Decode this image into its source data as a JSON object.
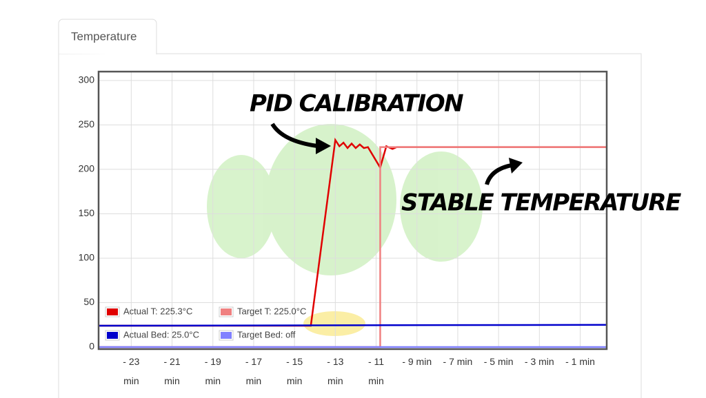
{
  "tab": "Temperature",
  "chart_data": {
    "type": "line",
    "annotations": [
      "PID CALIBRATION",
      "STABLE TEMPERATURE"
    ],
    "xlim": [
      -24.6,
      0.3
    ],
    "ylim": [
      0,
      310
    ],
    "xticks": [
      {
        "value": -23,
        "label": "- 23 min"
      },
      {
        "value": -21,
        "label": "- 21 min"
      },
      {
        "value": -19,
        "label": "- 19 min"
      },
      {
        "value": -17,
        "label": "- 17 min"
      },
      {
        "value": -15,
        "label": "- 15 min"
      },
      {
        "value": -13,
        "label": "- 13 min"
      },
      {
        "value": -11,
        "label": "- 11 min"
      },
      {
        "value": -9,
        "label": "- 9 min"
      },
      {
        "value": -7,
        "label": "- 7 min"
      },
      {
        "value": -5,
        "label": "- 5 min"
      },
      {
        "value": -3,
        "label": "- 3 min"
      },
      {
        "value": -1,
        "label": "- 1 min"
      }
    ],
    "yticks": [
      0,
      50,
      100,
      150,
      200,
      250,
      300
    ],
    "grid": true,
    "legend": "lower left",
    "series": [
      {
        "name": "Actual T: 225.3°C",
        "color": "#e00000",
        "x": [
          -24.6,
          -14.2,
          -13.0,
          -12.8,
          -12.6,
          -12.4,
          -12.2,
          -12.0,
          -11.8,
          -11.6,
          -11.4,
          -10.8,
          -10.5,
          -10.2,
          -10.0,
          0.3
        ],
        "values": [
          24,
          24,
          233,
          226,
          230,
          224,
          229,
          224,
          228,
          224,
          225,
          202,
          226,
          223,
          225,
          225
        ]
      },
      {
        "name": "Target T: 225.0°C",
        "color": "#f08080",
        "x": [
          -24.6,
          -10.8,
          -10.8,
          0.3
        ],
        "values": [
          0,
          0,
          225,
          225
        ]
      },
      {
        "name": "Actual Bed: 25.0°C",
        "color": "#0000cc",
        "x": [
          -24.6,
          0.3
        ],
        "values": [
          24,
          25
        ]
      },
      {
        "name": "Target Bed: off",
        "color": "#8080ff",
        "x": [
          -24.6,
          0.3
        ],
        "values": [
          0,
          0
        ]
      }
    ]
  }
}
